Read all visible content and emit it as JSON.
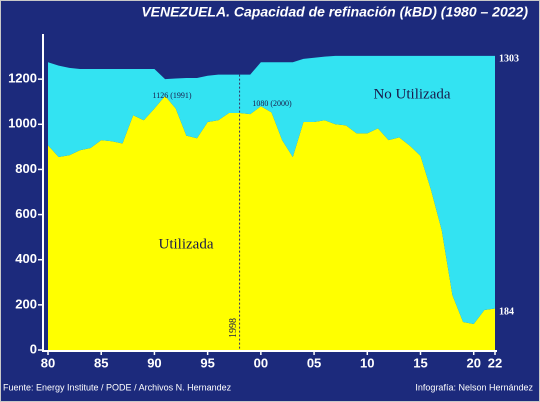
{
  "chart_data": {
    "type": "stacked-area",
    "title": "VENEZUELA.  Capacidad de refinación (kBD) (1980 – 2022)",
    "source": "Fuente: Energy Institute / PODE / Archivos N. Hernandez",
    "credit": "Infografía: Nelson Hernández",
    "x": [
      1980,
      1981,
      1982,
      1983,
      1984,
      1985,
      1986,
      1987,
      1988,
      1989,
      1990,
      1991,
      1992,
      1993,
      1994,
      1995,
      1996,
      1997,
      1998,
      1999,
      2000,
      2001,
      2002,
      2003,
      2004,
      2005,
      2006,
      2007,
      2008,
      2009,
      2010,
      2011,
      2012,
      2013,
      2014,
      2015,
      2016,
      2017,
      2018,
      2019,
      2020,
      2021,
      2022
    ],
    "series": [
      {
        "name": "Utilizada",
        "color": "#ffff00",
        "values": [
          907,
          855,
          863,
          885,
          895,
          930,
          925,
          915,
          1040,
          1018,
          1070,
          1126,
          1070,
          950,
          938,
          1010,
          1018,
          1050,
          1050,
          1045,
          1080,
          1053,
          930,
          855,
          1010,
          1010,
          1018,
          1000,
          995,
          960,
          960,
          982,
          930,
          942,
          905,
          860,
          708,
          530,
          243,
          124,
          115,
          177,
          184
        ]
      },
      {
        "name": "No Utilizada",
        "color": "#33e3f2",
        "values": [
          368,
          405,
          387,
          360,
          350,
          315,
          320,
          330,
          205,
          227,
          175,
          74,
          133,
          255,
          267,
          205,
          202,
          170,
          170,
          175,
          195,
          222,
          345,
          420,
          280,
          285,
          282,
          303,
          308,
          343,
          343,
          321,
          373,
          361,
          398,
          443,
          595,
          773,
          1060,
          1179,
          1188,
          1126,
          1119
        ]
      }
    ],
    "xlim": [
      1980,
      2022
    ],
    "xticks": [
      {
        "value": 1980,
        "label": "80"
      },
      {
        "value": 1985,
        "label": "85"
      },
      {
        "value": 1990,
        "label": "90"
      },
      {
        "value": 1995,
        "label": "95"
      },
      {
        "value": 2000,
        "label": "00"
      },
      {
        "value": 2005,
        "label": "05"
      },
      {
        "value": 2010,
        "label": "10"
      },
      {
        "value": 2015,
        "label": "15"
      },
      {
        "value": 2020,
        "label": "20"
      },
      {
        "value": 2022,
        "label": "22"
      }
    ],
    "ylim": [
      0,
      1400
    ],
    "yticks": [
      0,
      200,
      400,
      600,
      800,
      1000,
      1200
    ],
    "marker_line": {
      "value": 1998,
      "label": "1998"
    },
    "annotations": [
      "1126 (1991)",
      "1080 (2000)",
      "1303",
      "184"
    ]
  }
}
